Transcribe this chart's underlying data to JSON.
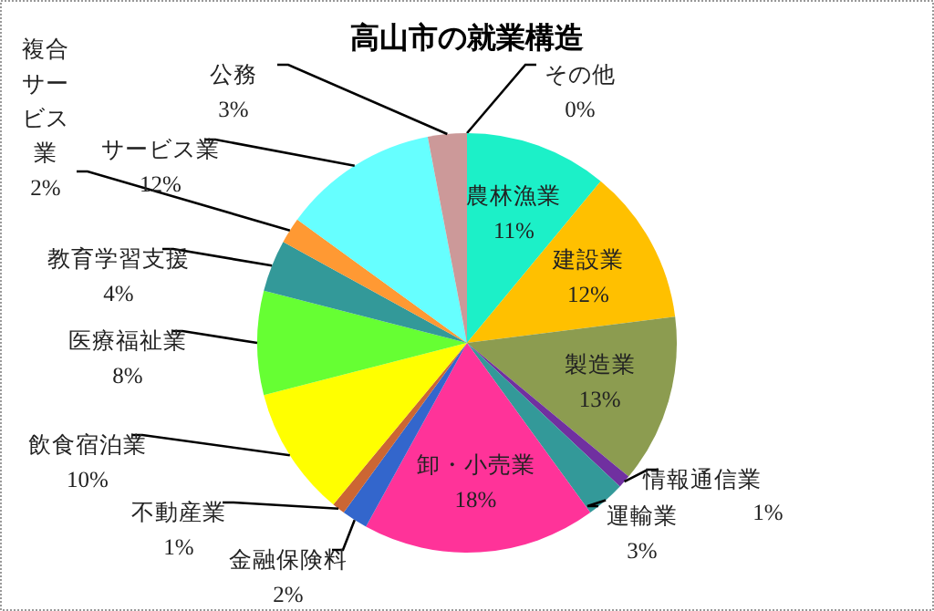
{
  "chart_data": {
    "type": "pie",
    "title": "高山市の就業構造",
    "categories": [
      "その他",
      "農林漁業",
      "建設業",
      "製造業",
      "情報通信業",
      "運輸業",
      "卸・小売業",
      "金融保険料",
      "不動産業",
      "飲食宿泊業",
      "医療福祉業",
      "教育学習支援",
      "複合サービス業",
      "サービス業",
      "公務"
    ],
    "values": [
      0,
      11,
      12,
      13,
      1,
      3,
      18,
      2,
      1,
      10,
      8,
      4,
      2,
      12,
      3
    ],
    "value_labels": [
      "0%",
      "11%",
      "12%",
      "13%",
      "1%",
      "3%",
      "18%",
      "2%",
      "1%",
      "10%",
      "8%",
      "4%",
      "2%",
      "12%",
      "3%"
    ],
    "colors": [
      "#a0c0a0",
      "#1cf0c8",
      "#ffc000",
      "#8c9c50",
      "#7030a0",
      "#339999",
      "#ff3399",
      "#3366cc",
      "#cc6633",
      "#ffff00",
      "#66ff33",
      "#339999",
      "#ff9933",
      "#66ffff",
      "#cc9999"
    ]
  }
}
